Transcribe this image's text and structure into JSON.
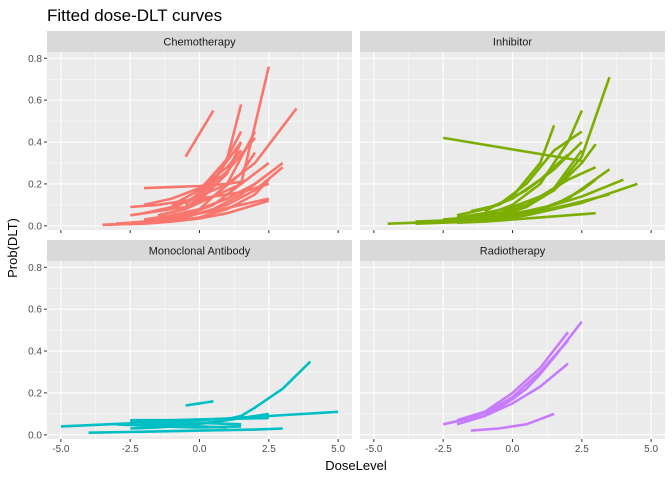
{
  "chart_data": {
    "type": "line",
    "title": "Fitted dose-DLT curves",
    "xlabel": "DoseLevel",
    "ylabel": "Prob(DLT)",
    "xlim": [
      -5.5,
      5.5
    ],
    "ylim": [
      -0.02,
      0.83
    ],
    "x_ticks": [
      -5,
      -2.5,
      0,
      2.5,
      5
    ],
    "x_tick_labels": [
      "-5.0",
      "-2.5",
      "0.0",
      "2.5",
      "5.0"
    ],
    "y_ticks": [
      0,
      0.2,
      0.4,
      0.6,
      0.8
    ],
    "y_tick_labels": [
      "0.0",
      "0.2",
      "0.4",
      "0.6",
      "0.8"
    ],
    "grid": true,
    "legend": "none",
    "facets": [
      {
        "name": "Chemotherapy",
        "color": "#F8766D",
        "series": [
          {
            "x": [
              -3.5,
              -2.5,
              -1.5,
              -0.5,
              0.5,
              1.5,
              2.5
            ],
            "y": [
              0.005,
              0.01,
              0.02,
              0.05,
              0.1,
              0.2,
              0.76
            ]
          },
          {
            "x": [
              -3.5,
              -2,
              -1,
              0,
              1,
              2,
              2.5
            ],
            "y": [
              0.005,
              0.01,
              0.02,
              0.04,
              0.08,
              0.15,
              0.22
            ]
          },
          {
            "x": [
              -3,
              -2,
              -1,
              0,
              1,
              2,
              3
            ],
            "y": [
              0.01,
              0.02,
              0.035,
              0.06,
              0.1,
              0.17,
              0.28
            ]
          },
          {
            "x": [
              -2.5,
              -1.5,
              -0.5,
              0.5,
              1.5,
              2.5
            ],
            "y": [
              0.05,
              0.07,
              0.09,
              0.14,
              0.2,
              0.3
            ]
          },
          {
            "x": [
              -2,
              -1,
              0,
              1,
              2,
              3
            ],
            "y": [
              0.03,
              0.05,
              0.08,
              0.13,
              0.2,
              0.3
            ]
          },
          {
            "x": [
              -2,
              -1,
              0,
              1,
              2,
              3.5
            ],
            "y": [
              0.06,
              0.09,
              0.14,
              0.2,
              0.3,
              0.56
            ]
          },
          {
            "x": [
              -2.5,
              -1.5,
              -0.5,
              0.5,
              1.5,
              2.5
            ],
            "y": [
              0.09,
              0.1,
              0.12,
              0.14,
              0.16,
              0.2
            ]
          },
          {
            "x": [
              -2,
              -1,
              0,
              1,
              1.5
            ],
            "y": [
              0.18,
              0.185,
              0.19,
              0.2,
              0.21
            ]
          },
          {
            "x": [
              -0.5,
              0.5
            ],
            "y": [
              0.33,
              0.55
            ]
          },
          {
            "x": [
              -1.5,
              -0.5,
              0.5,
              1.5,
              2.5
            ],
            "y": [
              0.02,
              0.04,
              0.08,
              0.15,
              0.25
            ]
          },
          {
            "x": [
              -1,
              0,
              1,
              2
            ],
            "y": [
              0.03,
              0.08,
              0.2,
              0.45
            ]
          },
          {
            "x": [
              -1,
              0,
              1,
              1.5
            ],
            "y": [
              0.06,
              0.12,
              0.25,
              0.4
            ]
          },
          {
            "x": [
              -1.5,
              -0.5,
              0.5,
              1.5,
              2
            ],
            "y": [
              0.05,
              0.08,
              0.14,
              0.25,
              0.35
            ]
          },
          {
            "x": [
              -2,
              -1,
              0,
              1,
              1.5
            ],
            "y": [
              0.1,
              0.13,
              0.18,
              0.28,
              0.36
            ]
          },
          {
            "x": [
              -1,
              0,
              1,
              1.5
            ],
            "y": [
              0.1,
              0.17,
              0.32,
              0.58
            ]
          },
          {
            "x": [
              -0.5,
              0.5,
              1.5
            ],
            "y": [
              0.08,
              0.2,
              0.45
            ]
          },
          {
            "x": [
              -1.5,
              -0.5,
              0.5,
              1.5,
              2.5
            ],
            "y": [
              0.03,
              0.05,
              0.07,
              0.1,
              0.13
            ]
          },
          {
            "x": [
              -3,
              -2,
              -1,
              0,
              1,
              2,
              2.5
            ],
            "y": [
              0.01,
              0.015,
              0.02,
              0.035,
              0.06,
              0.1,
              0.12
            ]
          },
          {
            "x": [
              -1,
              0,
              1,
              2
            ],
            "y": [
              0.08,
              0.15,
              0.26,
              0.42
            ]
          },
          {
            "x": [
              -0.5,
              0.5,
              1.5
            ],
            "y": [
              0.1,
              0.22,
              0.4
            ]
          }
        ]
      },
      {
        "name": "Inhibitor",
        "color": "#7CAE00",
        "series": [
          {
            "x": [
              -4.5,
              -3.5,
              -2.5,
              -1.5,
              -0.5,
              0.5,
              1.5,
              2.5,
              3.5
            ],
            "y": [
              0.01,
              0.015,
              0.02,
              0.03,
              0.05,
              0.09,
              0.17,
              0.33,
              0.71
            ]
          },
          {
            "x": [
              -2.5,
              2.5
            ],
            "y": [
              0.42,
              0.31
            ]
          },
          {
            "x": [
              -3.5,
              -2.5,
              -1.5,
              -0.5,
              0.5,
              1.5,
              2.5,
              3
            ],
            "y": [
              0.02,
              0.025,
              0.03,
              0.04,
              0.06,
              0.1,
              0.17,
              0.22
            ]
          },
          {
            "x": [
              -2.5,
              -1.5,
              -0.5,
              0.5,
              1.5,
              2.5,
              4
            ],
            "y": [
              0.03,
              0.04,
              0.05,
              0.07,
              0.1,
              0.14,
              0.22
            ]
          },
          {
            "x": [
              -2,
              -1,
              0,
              1,
              2,
              3.5
            ],
            "y": [
              0.02,
              0.03,
              0.05,
              0.08,
              0.13,
              0.27
            ]
          },
          {
            "x": [
              -2.5,
              -1.5,
              -0.5,
              0.5,
              1.5,
              2.5,
              3
            ],
            "y": [
              0.03,
              0.04,
              0.06,
              0.1,
              0.17,
              0.3,
              0.39
            ]
          },
          {
            "x": [
              -2,
              -1,
              0,
              1,
              2,
              3
            ],
            "y": [
              0.04,
              0.06,
              0.09,
              0.14,
              0.22,
              0.28
            ]
          },
          {
            "x": [
              -1.5,
              -0.5,
              0.5,
              1.5,
              2.5
            ],
            "y": [
              0.03,
              0.05,
              0.09,
              0.18,
              0.36
            ]
          },
          {
            "x": [
              -1,
              0,
              1,
              2,
              2.5
            ],
            "y": [
              0.05,
              0.1,
              0.2,
              0.4,
              0.55
            ]
          },
          {
            "x": [
              -1,
              0,
              1,
              1.5
            ],
            "y": [
              0.07,
              0.14,
              0.3,
              0.48
            ]
          },
          {
            "x": [
              -0.5,
              0.5,
              1.5,
              2.5
            ],
            "y": [
              0.1,
              0.2,
              0.36,
              0.45
            ]
          },
          {
            "x": [
              -2,
              -1,
              0,
              1,
              2,
              3
            ],
            "y": [
              0.015,
              0.02,
              0.03,
              0.04,
              0.05,
              0.06
            ]
          },
          {
            "x": [
              -3,
              -2,
              -1,
              0,
              1,
              2,
              3.5
            ],
            "y": [
              0.02,
              0.025,
              0.035,
              0.05,
              0.07,
              0.1,
              0.15
            ]
          },
          {
            "x": [
              -3.5,
              -2.5,
              -1.5,
              -0.5,
              0.5,
              1.5,
              2.5,
              4.5
            ],
            "y": [
              0.01,
              0.015,
              0.02,
              0.03,
              0.05,
              0.08,
              0.11,
              0.2
            ]
          },
          {
            "x": [
              -1.5,
              -0.5,
              0.5,
              1.5,
              2.5
            ],
            "y": [
              0.07,
              0.1,
              0.17,
              0.27,
              0.4
            ]
          },
          {
            "x": [
              -2,
              -1,
              0,
              1,
              2
            ],
            "y": [
              0.05,
              0.08,
              0.13,
              0.22,
              0.34
            ]
          }
        ]
      },
      {
        "name": "Monoclonal Antibody",
        "color": "#00BFC4",
        "series": [
          {
            "x": [
              -5,
              -2.5,
              0,
              2.5,
              5
            ],
            "y": [
              0.04,
              0.055,
              0.07,
              0.09,
              0.11
            ]
          },
          {
            "x": [
              -4,
              -2,
              0,
              2,
              3
            ],
            "y": [
              0.01,
              0.015,
              0.02,
              0.025,
              0.03
            ]
          },
          {
            "x": [
              -2.5,
              -1.5,
              -0.5,
              0.5,
              1.5,
              2,
              3,
              4
            ],
            "y": [
              0.05,
              0.05,
              0.05,
              0.06,
              0.09,
              0.13,
              0.22,
              0.35
            ]
          },
          {
            "x": [
              -0.5,
              0.5
            ],
            "y": [
              0.14,
              0.16
            ]
          },
          {
            "x": [
              -2.5,
              -1,
              0.5,
              2.5
            ],
            "y": [
              0.07,
              0.07,
              0.075,
              0.08
            ]
          },
          {
            "x": [
              -2.5,
              -1,
              0.5,
              1.5
            ],
            "y": [
              0.065,
              0.06,
              0.055,
              0.05
            ]
          },
          {
            "x": [
              -2.5,
              -1.5,
              -0.5,
              0.5,
              1.5,
              2.5
            ],
            "y": [
              0.03,
              0.035,
              0.045,
              0.06,
              0.08,
              0.1
            ]
          },
          {
            "x": [
              -3,
              -1.5,
              0,
              1.5
            ],
            "y": [
              0.05,
              0.04,
              0.035,
              0.04
            ]
          },
          {
            "x": [
              -2,
              -1,
              0,
              1
            ],
            "y": [
              0.06,
              0.05,
              0.04,
              0.035
            ]
          }
        ]
      },
      {
        "name": "Radiotherapy",
        "color": "#C77CFF",
        "series": [
          {
            "x": [
              -2.5,
              -1.5,
              -0.5,
              0,
              0.5,
              1,
              1.5,
              2.5
            ],
            "y": [
              0.05,
              0.08,
              0.13,
              0.17,
              0.22,
              0.29,
              0.37,
              0.54
            ]
          },
          {
            "x": [
              -2,
              -1,
              0,
              1,
              2
            ],
            "y": [
              0.07,
              0.11,
              0.2,
              0.32,
              0.49
            ]
          },
          {
            "x": [
              -2,
              -1,
              0,
              1,
              2
            ],
            "y": [
              0.05,
              0.09,
              0.15,
              0.23,
              0.34
            ]
          },
          {
            "x": [
              -1.5,
              -0.5,
              0.5,
              1.5
            ],
            "y": [
              0.02,
              0.03,
              0.05,
              0.1
            ]
          },
          {
            "x": [
              -1,
              0,
              1,
              2
            ],
            "y": [
              0.1,
              0.18,
              0.3,
              0.45
            ]
          }
        ]
      }
    ]
  }
}
